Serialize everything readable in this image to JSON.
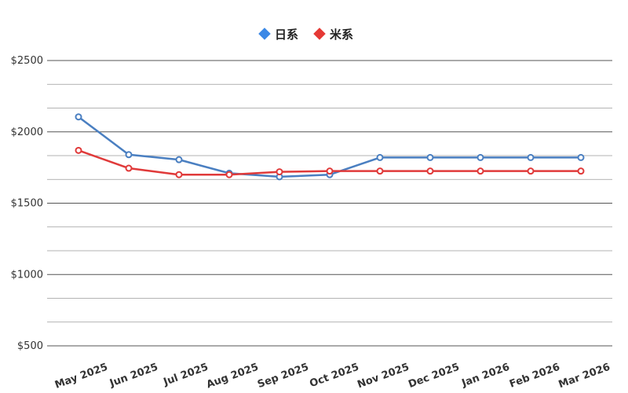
{
  "chart_data": {
    "type": "line",
    "categories": [
      "May 2025",
      "Jun 2025",
      "Jul 2025",
      "Aug 2025",
      "Sep 2025",
      "Oct 2025",
      "Nov 2025",
      "Dec 2025",
      "Jan 2026",
      "Feb 2026",
      "Mar 2026"
    ],
    "series": [
      {
        "name": "日系",
        "color": "#4a7fc1",
        "marker_legend_color": "#3b88e6",
        "values": [
          2105,
          1840,
          1805,
          1710,
          1685,
          1700,
          1820,
          1820,
          1820,
          1820,
          1820
        ]
      },
      {
        "name": "米系",
        "color": "#e03a3a",
        "marker_legend_color": "#e53935",
        "values": [
          1870,
          1745,
          1700,
          1700,
          1720,
          1725,
          1725,
          1725,
          1725,
          1725,
          1725
        ]
      }
    ],
    "y_ticks": [
      "$2500",
      "$2000",
      "$1500",
      "$1000",
      "$500"
    ],
    "ylim": [
      500,
      2500
    ],
    "grid": true,
    "legend": "top-center",
    "title": "",
    "xlabel": "",
    "ylabel": ""
  }
}
